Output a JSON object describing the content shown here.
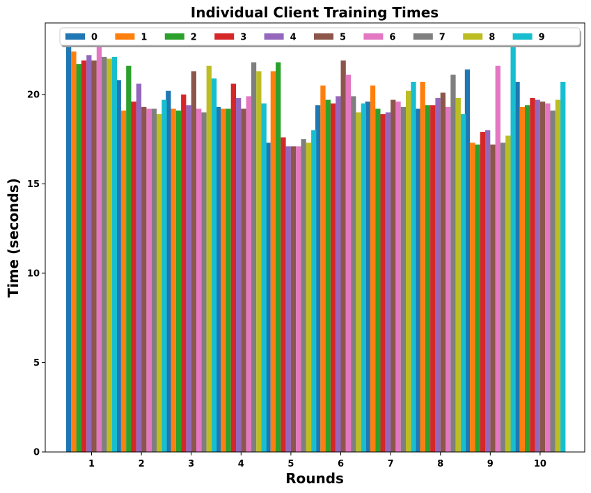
{
  "chart_data": {
    "type": "bar",
    "title": "Individual Client Training Times",
    "xlabel": "Rounds",
    "ylabel": "Time (seconds)",
    "categories": [
      "1",
      "2",
      "3",
      "4",
      "5",
      "6",
      "7",
      "8",
      "9",
      "10"
    ],
    "ylim": [
      0,
      24
    ],
    "yticks": [
      0,
      5,
      10,
      15,
      20
    ],
    "grid": false,
    "legend_position": "top",
    "series": [
      {
        "name": "0",
        "color": "#1f77b4",
        "values": [
          22.7,
          20.8,
          20.2,
          19.3,
          17.3,
          19.4,
          19.6,
          19.2,
          21.4,
          20.7
        ]
      },
      {
        "name": "1",
        "color": "#ff7f0e",
        "values": [
          22.4,
          19.1,
          19.2,
          19.2,
          21.3,
          20.5,
          20.5,
          20.7,
          17.3,
          19.3
        ]
      },
      {
        "name": "2",
        "color": "#2ca02c",
        "values": [
          21.7,
          21.6,
          19.1,
          19.2,
          21.8,
          19.7,
          19.2,
          19.4,
          17.2,
          19.4
        ]
      },
      {
        "name": "3",
        "color": "#d62728",
        "values": [
          21.9,
          19.6,
          20.0,
          20.6,
          17.6,
          19.5,
          18.9,
          19.4,
          17.9,
          19.8
        ]
      },
      {
        "name": "4",
        "color": "#9467bd",
        "values": [
          22.2,
          20.6,
          19.4,
          19.8,
          17.1,
          19.9,
          19.0,
          19.8,
          18.0,
          19.7
        ]
      },
      {
        "name": "5",
        "color": "#8c564b",
        "values": [
          21.9,
          19.3,
          21.3,
          19.2,
          17.1,
          21.9,
          19.7,
          20.1,
          17.2,
          19.6
        ]
      },
      {
        "name": "6",
        "color": "#e377c2",
        "values": [
          22.8,
          19.2,
          19.2,
          19.9,
          17.1,
          21.1,
          19.6,
          19.3,
          21.6,
          19.5
        ]
      },
      {
        "name": "7",
        "color": "#7f7f7f",
        "values": [
          22.1,
          19.2,
          19.0,
          21.8,
          17.5,
          19.9,
          19.3,
          21.1,
          17.3,
          19.1
        ]
      },
      {
        "name": "8",
        "color": "#bcbd22",
        "values": [
          22.0,
          18.9,
          21.6,
          21.3,
          17.3,
          19.0,
          20.2,
          19.8,
          17.7,
          19.7
        ]
      },
      {
        "name": "9",
        "color": "#17becf",
        "values": [
          22.1,
          19.7,
          20.9,
          19.5,
          18.0,
          19.5,
          20.7,
          18.9,
          22.8,
          20.7
        ]
      }
    ]
  }
}
